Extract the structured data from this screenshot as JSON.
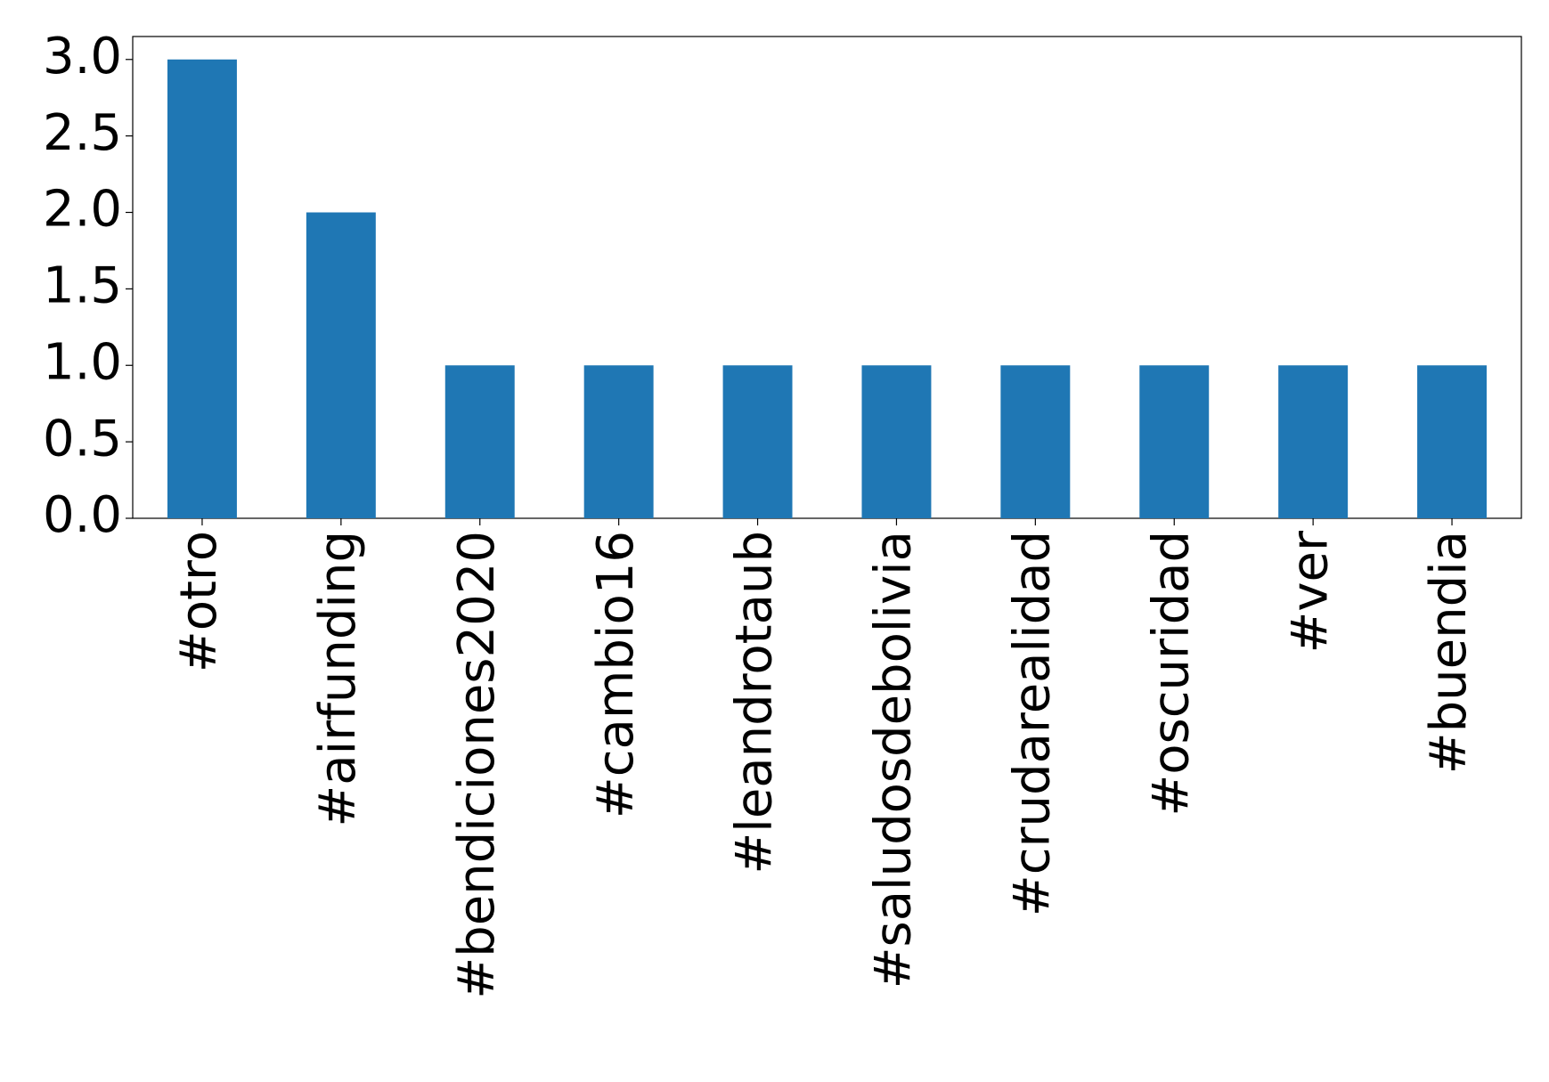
{
  "chart_data": {
    "type": "bar",
    "categories": [
      "#otro",
      "#airfunding",
      "#bendiciones2020",
      "#cambio16",
      "#leandrotaub",
      "#saludosdebolivia",
      "#crudarealidad",
      "#oscuridad",
      "#ver",
      "#buendia"
    ],
    "values": [
      3,
      2,
      1,
      1,
      1,
      1,
      1,
      1,
      1,
      1
    ],
    "color": "#1f77b4",
    "ylim": [
      0,
      3.15
    ],
    "yticks": [
      {
        "value": 0,
        "label": "0.0"
      },
      {
        "value": 0.5,
        "label": "0.5"
      },
      {
        "value": 1,
        "label": "1.0"
      },
      {
        "value": 1.5,
        "label": "1.5"
      },
      {
        "value": 2,
        "label": "2.0"
      },
      {
        "value": 2.5,
        "label": "2.5"
      },
      {
        "value": 3,
        "label": "3.0"
      }
    ],
    "grid": false
  }
}
